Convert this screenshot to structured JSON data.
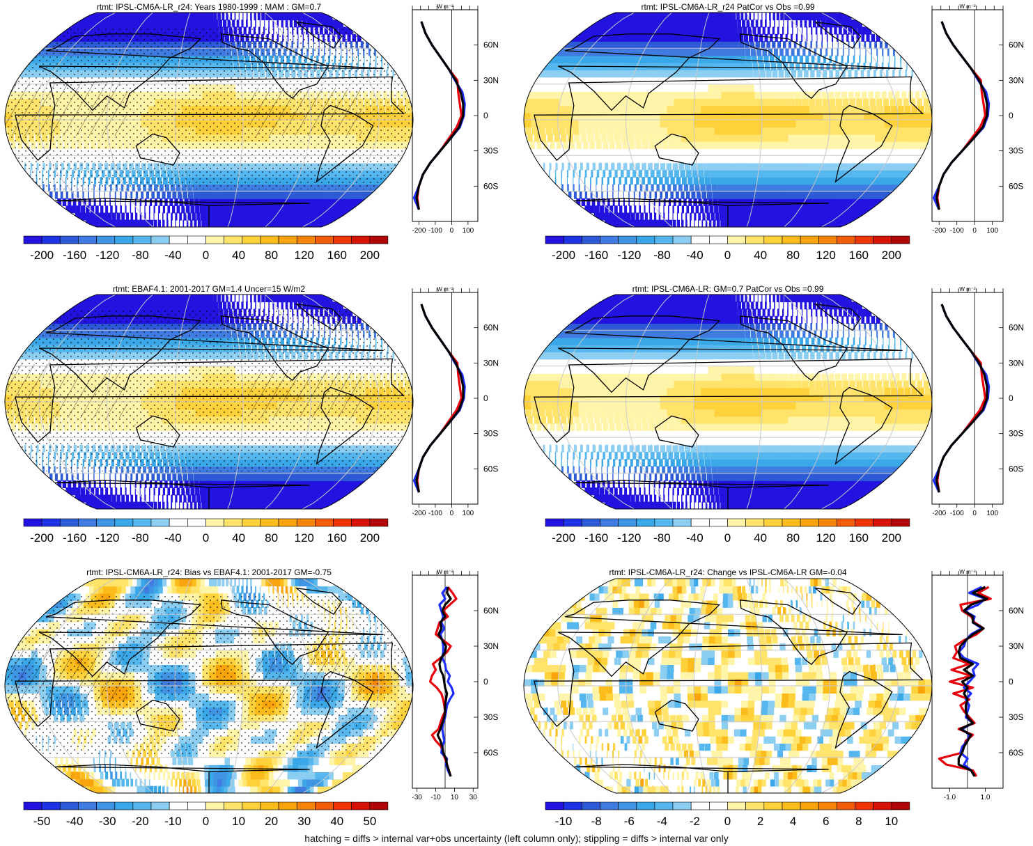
{
  "footer": "hatching = diffs > internal var+obs uncertainty (left column only); stippling = diffs > internal var only",
  "colors": {
    "diverging_palette": [
      "#2213e0",
      "#1e33e6",
      "#2d5ad6",
      "#3f7be0",
      "#3f94e4",
      "#3aa7e8",
      "#56b7ee",
      "#8ccdf2",
      "#ffffff",
      "#ffffff",
      "#fff4a8",
      "#ffe36b",
      "#ffd23c",
      "#fcbd1c",
      "#f9a40c",
      "#f6850a",
      "#f35c08",
      "#ef3406",
      "#d61306",
      "#b10607"
    ],
    "profile_model": "#e8000b",
    "profile_obs_blue": "#1d2cff",
    "profile_mean": "#000000",
    "grid": "#c8c8c8",
    "coast": "#000000"
  },
  "chart_data": [
    {
      "id": "p1",
      "type": "heatmap",
      "title": "rtmt: IPSL-CM6A-LR_r24: Years 1980-1999 : MAM : GM=0.7",
      "projection": "robinson",
      "colorbar_ticks": [
        "-200",
        "-160",
        "-120",
        "-80",
        "-40",
        "0",
        "40",
        "80",
        "120",
        "160",
        "200"
      ],
      "range": [
        -220,
        220
      ],
      "pattern": "mean",
      "hatch": true,
      "stipple": true,
      "profile": {
        "unit_label": "W m⁻²",
        "x_ticks": [
          "-200",
          "-100",
          "0",
          "100"
        ],
        "xlim": [
          -240,
          160
        ],
        "lat_ticks": [
          "60N",
          "30N",
          "0",
          "30S",
          "60S"
        ],
        "lat": [
          80,
          70,
          60,
          50,
          40,
          30,
          20,
          10,
          0,
          -10,
          -20,
          -30,
          -40,
          -50,
          -60,
          -70,
          -80
        ],
        "series": [
          {
            "color": "red",
            "values": [
              -185,
              -160,
              -120,
              -70,
              -20,
              35,
              40,
              50,
              60,
              30,
              -20,
              -70,
              -130,
              -175,
              -200,
              -210,
              -200
            ]
          },
          {
            "color": "blue",
            "values": [
              -185,
              -160,
              -120,
              -70,
              -20,
              20,
              65,
              80,
              75,
              50,
              -10,
              -70,
              -130,
              -175,
              -200,
              -230,
              -200
            ]
          },
          {
            "color": "black",
            "values": [
              -185,
              -160,
              -120,
              -70,
              -20,
              25,
              55,
              70,
              70,
              45,
              -10,
              -70,
              -130,
              -175,
              -200,
              -215,
              -200
            ]
          }
        ]
      }
    },
    {
      "id": "p2",
      "type": "heatmap",
      "title": "rtmt: IPSL-CM6A-LR_r24 PatCor vs Obs =0.99",
      "projection": "robinson",
      "colorbar_ticks": [
        "-200",
        "-160",
        "-120",
        "-80",
        "-40",
        "0",
        "40",
        "80",
        "120",
        "160",
        "200"
      ],
      "range": [
        -220,
        220
      ],
      "pattern": "mean",
      "hatch": false,
      "stipple": false,
      "profile": {
        "unit_label": "W m⁻²",
        "x_ticks": [
          "-200",
          "-100",
          "0",
          "100"
        ],
        "xlim": [
          -240,
          160
        ],
        "lat_ticks": [
          "60N",
          "30N",
          "0",
          "30S",
          "60S"
        ],
        "lat": [
          80,
          70,
          60,
          50,
          40,
          30,
          20,
          10,
          0,
          -10,
          -20,
          -30,
          -40,
          -50,
          -60,
          -70,
          -80
        ],
        "series": [
          {
            "color": "red",
            "values": [
              -185,
              -160,
              -120,
              -70,
              -20,
              35,
              40,
              50,
              60,
              30,
              -20,
              -70,
              -130,
              -175,
              -200,
              -210,
              -200
            ]
          },
          {
            "color": "blue",
            "values": [
              -185,
              -160,
              -120,
              -70,
              -20,
              20,
              65,
              80,
              75,
              50,
              -10,
              -70,
              -130,
              -175,
              -200,
              -230,
              -200
            ]
          },
          {
            "color": "black",
            "values": [
              -185,
              -160,
              -120,
              -70,
              -20,
              25,
              55,
              70,
              70,
              45,
              -10,
              -70,
              -130,
              -175,
              -200,
              -215,
              -200
            ]
          }
        ]
      }
    },
    {
      "id": "p3",
      "type": "heatmap",
      "title": "rtmt: EBAF4.1: 2001-2017 GM=1.4 Uncer=15 W/m2",
      "projection": "robinson",
      "colorbar_ticks": [
        "-200",
        "-160",
        "-120",
        "-80",
        "-40",
        "0",
        "40",
        "80",
        "120",
        "160",
        "200"
      ],
      "range": [
        -220,
        220
      ],
      "pattern": "mean",
      "hatch": true,
      "stipple": true,
      "profile": {
        "unit_label": "W m⁻²",
        "x_ticks": [
          "-200",
          "-100",
          "0",
          "100"
        ],
        "xlim": [
          -240,
          160
        ],
        "lat_ticks": [
          "60N",
          "30N",
          "0",
          "30S",
          "60S"
        ],
        "lat": [
          80,
          70,
          60,
          50,
          40,
          30,
          20,
          10,
          0,
          -10,
          -20,
          -30,
          -40,
          -50,
          -60,
          -70,
          -80
        ],
        "series": [
          {
            "color": "red",
            "values": [
              -185,
              -160,
              -120,
              -70,
              -20,
              35,
              40,
              50,
              60,
              30,
              -20,
              -70,
              -130,
              -175,
              -200,
              -210,
              -200
            ]
          },
          {
            "color": "blue",
            "values": [
              -185,
              -160,
              -120,
              -70,
              -20,
              20,
              65,
              80,
              75,
              50,
              -10,
              -70,
              -130,
              -175,
              -200,
              -230,
              -200
            ]
          },
          {
            "color": "black",
            "values": [
              -185,
              -160,
              -120,
              -70,
              -20,
              25,
              55,
              70,
              70,
              45,
              -10,
              -70,
              -130,
              -175,
              -200,
              -215,
              -200
            ]
          }
        ]
      }
    },
    {
      "id": "p4",
      "type": "heatmap",
      "title": "rtmt: IPSL-CM6A-LR: GM=0.7 PatCor vs Obs =0.99",
      "projection": "robinson",
      "colorbar_ticks": [
        "-200",
        "-160",
        "-120",
        "-80",
        "-40",
        "0",
        "40",
        "80",
        "120",
        "160",
        "200"
      ],
      "range": [
        -220,
        220
      ],
      "pattern": "mean",
      "hatch": false,
      "stipple": false,
      "profile": {
        "unit_label": "W m⁻²",
        "x_ticks": [
          "-200",
          "-100",
          "0",
          "100"
        ],
        "xlim": [
          -240,
          160
        ],
        "lat_ticks": [
          "60N",
          "30N",
          "0",
          "30S",
          "60S"
        ],
        "lat": [
          80,
          70,
          60,
          50,
          40,
          30,
          20,
          10,
          0,
          -10,
          -20,
          -30,
          -40,
          -50,
          -60,
          -70,
          -80
        ],
        "series": [
          {
            "color": "red",
            "values": [
              -185,
              -160,
              -120,
              -70,
              -20,
              35,
              40,
              50,
              60,
              30,
              -20,
              -70,
              -130,
              -175,
              -200,
              -210,
              -200
            ]
          },
          {
            "color": "blue",
            "values": [
              -185,
              -160,
              -120,
              -70,
              -20,
              20,
              65,
              80,
              75,
              50,
              -10,
              -70,
              -130,
              -175,
              -200,
              -230,
              -200
            ]
          },
          {
            "color": "black",
            "values": [
              -185,
              -160,
              -120,
              -70,
              -20,
              25,
              55,
              70,
              70,
              45,
              -10,
              -70,
              -130,
              -175,
              -200,
              -215,
              -200
            ]
          }
        ]
      }
    },
    {
      "id": "p5",
      "type": "heatmap",
      "title": "rtmt: IPSL-CM6A-LR_r24: Bias vs EBAF4.1: 2001-2017 GM=-0.75",
      "projection": "robinson",
      "colorbar_ticks": [
        "-50",
        "-40",
        "-30",
        "-20",
        "-10",
        "0",
        "10",
        "20",
        "30",
        "40",
        "50"
      ],
      "range": [
        -55,
        55
      ],
      "pattern": "bias",
      "hatch": true,
      "stipple": true,
      "profile": {
        "unit_label": "W m⁻²",
        "x_ticks": [
          "-30",
          "-10",
          "10",
          "30"
        ],
        "xlim": [
          -35,
          35
        ],
        "lat_ticks": [
          "60N",
          "30N",
          "0",
          "30S",
          "60S"
        ],
        "lat": [
          80,
          75,
          70,
          65,
          60,
          55,
          50,
          45,
          40,
          35,
          30,
          25,
          20,
          15,
          10,
          5,
          0,
          -5,
          -10,
          -15,
          -20,
          -25,
          -30,
          -35,
          -40,
          -45,
          -50,
          -55,
          -60,
          -65,
          -70,
          -75,
          -80
        ],
        "series": [
          {
            "color": "red",
            "values": [
              3,
              8,
              12,
              5,
              -2,
              3,
              -6,
              -8,
              -10,
              -2,
              6,
              2,
              -5,
              -13,
              -10,
              -14,
              -16,
              -9,
              -4,
              -2,
              -1,
              0,
              -3,
              -5,
              -7,
              -14,
              -10,
              -4,
              -3,
              0,
              2,
              4,
              6
            ]
          },
          {
            "color": "blue",
            "values": [
              2,
              -3,
              0,
              -6,
              -4,
              -2,
              -4,
              -1,
              -5,
              -3,
              -2,
              -2,
              -3,
              0,
              1,
              5,
              3,
              7,
              9,
              5,
              2,
              1,
              0,
              -2,
              -3,
              -2,
              -1,
              -3,
              -4,
              2,
              1,
              3,
              6
            ]
          },
          {
            "color": "black",
            "values": [
              3,
              2,
              6,
              0,
              -3,
              0,
              -5,
              -4,
              -7,
              -3,
              1,
              0,
              -4,
              -6,
              -5,
              -2,
              -1,
              0,
              2,
              1,
              0,
              0,
              -1,
              -3,
              -5,
              -8,
              -5,
              -3,
              -2,
              1,
              2,
              4,
              6
            ]
          }
        ]
      }
    },
    {
      "id": "p6",
      "type": "heatmap",
      "title": "rtmt: IPSL-CM6A-LR_r24: Change vs IPSL-CM6A-LR GM=-0.04",
      "projection": "robinson",
      "colorbar_ticks": [
        "-10",
        "-8",
        "-6",
        "-4",
        "-2",
        "0",
        "2",
        "4",
        "6",
        "8",
        "10"
      ],
      "range": [
        -11,
        11
      ],
      "pattern": "change",
      "hatch": false,
      "stipple": false,
      "profile": {
        "unit_label": "W m⁻²",
        "x_ticks": [
          "-1.0",
          "1.0"
        ],
        "xlim": [
          -2.0,
          2.0
        ],
        "lat_ticks": [
          "60N",
          "30N",
          "0",
          "30S",
          "60S"
        ],
        "lat": [
          80,
          75,
          70,
          65,
          60,
          55,
          50,
          45,
          40,
          35,
          30,
          25,
          20,
          15,
          10,
          5,
          0,
          -5,
          -10,
          -15,
          -20,
          -25,
          -30,
          -35,
          -40,
          -45,
          -50,
          -55,
          -60,
          -65,
          -70,
          -75,
          -80
        ],
        "series": [
          {
            "color": "red",
            "values": [
              1.2,
              0.6,
              1.3,
              -0.4,
              -0.3,
              0.2,
              0.4,
              0.9,
              0.5,
              -0.2,
              -0.7,
              -0.6,
              -0.8,
              0.1,
              -0.9,
              0.2,
              -1.0,
              0.3,
              -0.8,
              0.1,
              -0.4,
              -0.2,
              0.1,
              0.4,
              -0.5,
              0.3,
              -0.1,
              -0.2,
              -0.3,
              -1.6,
              -1.2,
              0.3,
              0.5
            ]
          },
          {
            "color": "blue",
            "values": [
              0.8,
              0.1,
              1.0,
              0.6,
              -0.2,
              0.4,
              0.3,
              0.8,
              0.2,
              -0.1,
              -0.2,
              -0.5,
              -0.2,
              0.6,
              0.3,
              0.4,
              0.1,
              -0.2,
              0.2,
              -0.1,
              0.1,
              0.0,
              -0.1,
              0.3,
              -0.3,
              0.1,
              0.0,
              -0.3,
              -0.4,
              0.0,
              -0.2,
              0.2,
              0.4
            ]
          },
          {
            "color": "black",
            "values": [
              1.0,
              0.3,
              1.1,
              0.2,
              -0.2,
              0.3,
              0.3,
              0.9,
              0.3,
              -0.1,
              -0.4,
              -0.5,
              -0.4,
              0.3,
              -0.2,
              0.3,
              -0.3,
              0.0,
              -0.2,
              0.0,
              -0.1,
              -0.1,
              0.0,
              0.3,
              -0.4,
              0.2,
              0.0,
              -0.2,
              -0.3,
              -0.5,
              -0.5,
              0.2,
              0.4
            ]
          }
        ]
      }
    }
  ]
}
